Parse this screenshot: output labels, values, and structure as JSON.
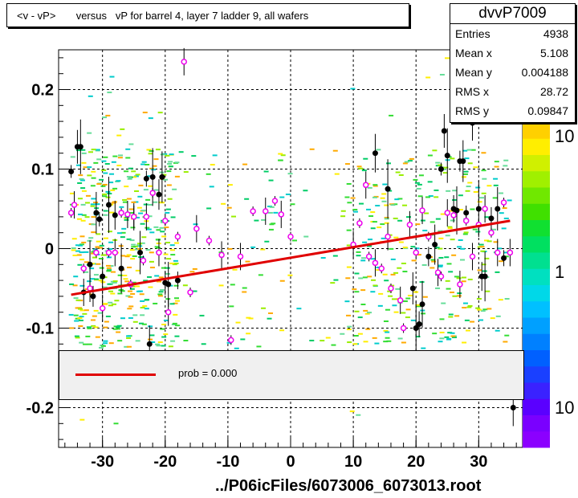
{
  "title": "<v - vP>       versus   vP for barrel 4, layer 7 ladder 9, all wafers",
  "stats": {
    "name": "dvvP7009",
    "rows": [
      {
        "label": "Entries",
        "value": "4938"
      },
      {
        "label": "Mean x",
        "value": "5.108"
      },
      {
        "label": "Mean y",
        "value": "0.004188"
      },
      {
        "label": "RMS x",
        "value": "28.72"
      },
      {
        "label": "RMS y",
        "value": "0.09847"
      }
    ]
  },
  "legend": {
    "label": "prob = 0.000",
    "line_color": "#e00000"
  },
  "xlabel": "../P06icFiles/6073006_6073013.root",
  "chart_data": {
    "type": "scatter",
    "xlim": [
      -37,
      37
    ],
    "ylim": [
      -0.25,
      0.25
    ],
    "xticks": [
      -30,
      -20,
      -10,
      0,
      10,
      20,
      30
    ],
    "xtick_labels": [
      "-30",
      "-20",
      "-10",
      "0",
      "10",
      "20",
      "30"
    ],
    "yticks": [
      -0.2,
      -0.1,
      0,
      0.1,
      0.2
    ],
    "ytick_labels": [
      "-0.2",
      "-0.1",
      "0",
      "0.1",
      "0.2"
    ],
    "grid": true,
    "colorbar_labels": [
      "10",
      "1",
      "10"
    ],
    "fit_line": {
      "x": [
        -35,
        35
      ],
      "y": [
        -0.058,
        0.035
      ],
      "color": "#e00000"
    },
    "profile_black": [
      {
        "x": -35,
        "y": 0.097
      },
      {
        "x": -34,
        "y": 0.128
      },
      {
        "x": -33.5,
        "y": 0.128
      },
      {
        "x": -33,
        "y": -0.055
      },
      {
        "x": -32,
        "y": -0.02
      },
      {
        "x": -31.5,
        "y": -0.06
      },
      {
        "x": -31,
        "y": 0.045
      },
      {
        "x": -30.5,
        "y": 0.037
      },
      {
        "x": -30,
        "y": -0.035
      },
      {
        "x": -29,
        "y": 0.055
      },
      {
        "x": -28,
        "y": 0.042
      },
      {
        "x": -27,
        "y": -0.025
      },
      {
        "x": -25,
        "y": 0.04
      },
      {
        "x": -24,
        "y": -0.005
      },
      {
        "x": -23,
        "y": 0.088
      },
      {
        "x": -22.5,
        "y": -0.12
      },
      {
        "x": -22,
        "y": 0.09
      },
      {
        "x": -21,
        "y": 0.068
      },
      {
        "x": -20.5,
        "y": 0.09
      },
      {
        "x": -20,
        "y": -0.043
      },
      {
        "x": -19.5,
        "y": -0.045
      },
      {
        "x": -18,
        "y": -0.04
      },
      {
        "x": 13.5,
        "y": 0.12
      },
      {
        "x": 15.5,
        "y": 0.075
      },
      {
        "x": 19.5,
        "y": -0.05
      },
      {
        "x": 20,
        "y": -0.1
      },
      {
        "x": 20.5,
        "y": -0.095
      },
      {
        "x": 21,
        "y": -0.07
      },
      {
        "x": 22,
        "y": -0.01
      },
      {
        "x": 23,
        "y": 0.005
      },
      {
        "x": 24,
        "y": 0.1
      },
      {
        "x": 24.5,
        "y": 0.148
      },
      {
        "x": 25,
        "y": 0.117
      },
      {
        "x": 26,
        "y": 0.05
      },
      {
        "x": 26.5,
        "y": 0.048
      },
      {
        "x": 27,
        "y": 0.11
      },
      {
        "x": 27.5,
        "y": 0.11
      },
      {
        "x": 28,
        "y": 0.045
      },
      {
        "x": 29,
        "y": 0.158
      },
      {
        "x": 30,
        "y": 0.05
      },
      {
        "x": 30.5,
        "y": -0.035
      },
      {
        "x": 31,
        "y": -0.035
      },
      {
        "x": 32,
        "y": 0.038
      },
      {
        "x": 33,
        "y": 0.05
      },
      {
        "x": 34,
        "y": -0.012
      },
      {
        "x": 35.5,
        "y": -0.2
      }
    ],
    "profile_magenta": [
      {
        "x": -35,
        "y": 0.045
      },
      {
        "x": -34.5,
        "y": 0.055
      },
      {
        "x": -33,
        "y": -0.025
      },
      {
        "x": -32,
        "y": -0.05
      },
      {
        "x": -31,
        "y": -0.005
      },
      {
        "x": -30,
        "y": -0.075
      },
      {
        "x": -29,
        "y": -0.005
      },
      {
        "x": -28,
        "y": -0.005
      },
      {
        "x": -27,
        "y": 0.045
      },
      {
        "x": -26,
        "y": 0.043
      },
      {
        "x": -25.5,
        "y": -0.045
      },
      {
        "x": -25,
        "y": 0.04
      },
      {
        "x": -23.5,
        "y": -0.015
      },
      {
        "x": -23,
        "y": 0.04
      },
      {
        "x": -22,
        "y": 0.07
      },
      {
        "x": -21,
        "y": -0.005
      },
      {
        "x": -20,
        "y": 0.035
      },
      {
        "x": -19.5,
        "y": -0.08
      },
      {
        "x": -18,
        "y": 0.015
      },
      {
        "x": -17,
        "y": 0.235
      },
      {
        "x": -16,
        "y": -0.055
      },
      {
        "x": -15,
        "y": 0.025
      },
      {
        "x": -13,
        "y": 0.01
      },
      {
        "x": -11,
        "y": -0.008
      },
      {
        "x": -9.5,
        "y": -0.115
      },
      {
        "x": -8,
        "y": -0.01
      },
      {
        "x": -6,
        "y": 0.047
      },
      {
        "x": -4,
        "y": 0.047
      },
      {
        "x": -2.5,
        "y": 0.06
      },
      {
        "x": -1.5,
        "y": 0.043
      },
      {
        "x": 0,
        "y": 0.015
      },
      {
        "x": 10,
        "y": 0.005
      },
      {
        "x": 11,
        "y": 0.032
      },
      {
        "x": 12,
        "y": 0.08
      },
      {
        "x": 12.5,
        "y": -0.01
      },
      {
        "x": 13.5,
        "y": -0.018
      },
      {
        "x": 14.5,
        "y": -0.025
      },
      {
        "x": 15.5,
        "y": 0.015
      },
      {
        "x": 16,
        "y": -0.05
      },
      {
        "x": 17.5,
        "y": -0.065
      },
      {
        "x": 18,
        "y": -0.1
      },
      {
        "x": 19,
        "y": 0.03
      },
      {
        "x": 20,
        "y": -0.005
      },
      {
        "x": 21,
        "y": 0.048
      },
      {
        "x": 22,
        "y": 0.015
      },
      {
        "x": 23.5,
        "y": -0.03
      },
      {
        "x": 24,
        "y": -0.035
      },
      {
        "x": 25,
        "y": 0.045
      },
      {
        "x": 26,
        "y": 0.042
      },
      {
        "x": 27,
        "y": -0.045
      },
      {
        "x": 28,
        "y": 0.035
      },
      {
        "x": 29,
        "y": -0.01
      },
      {
        "x": 30,
        "y": 0.03
      },
      {
        "x": 31,
        "y": 0.05
      },
      {
        "x": 32,
        "y": 0.02
      },
      {
        "x": 33,
        "y": -0.005
      },
      {
        "x": 34,
        "y": 0.058
      },
      {
        "x": 35,
        "y": -0.005
      }
    ]
  }
}
